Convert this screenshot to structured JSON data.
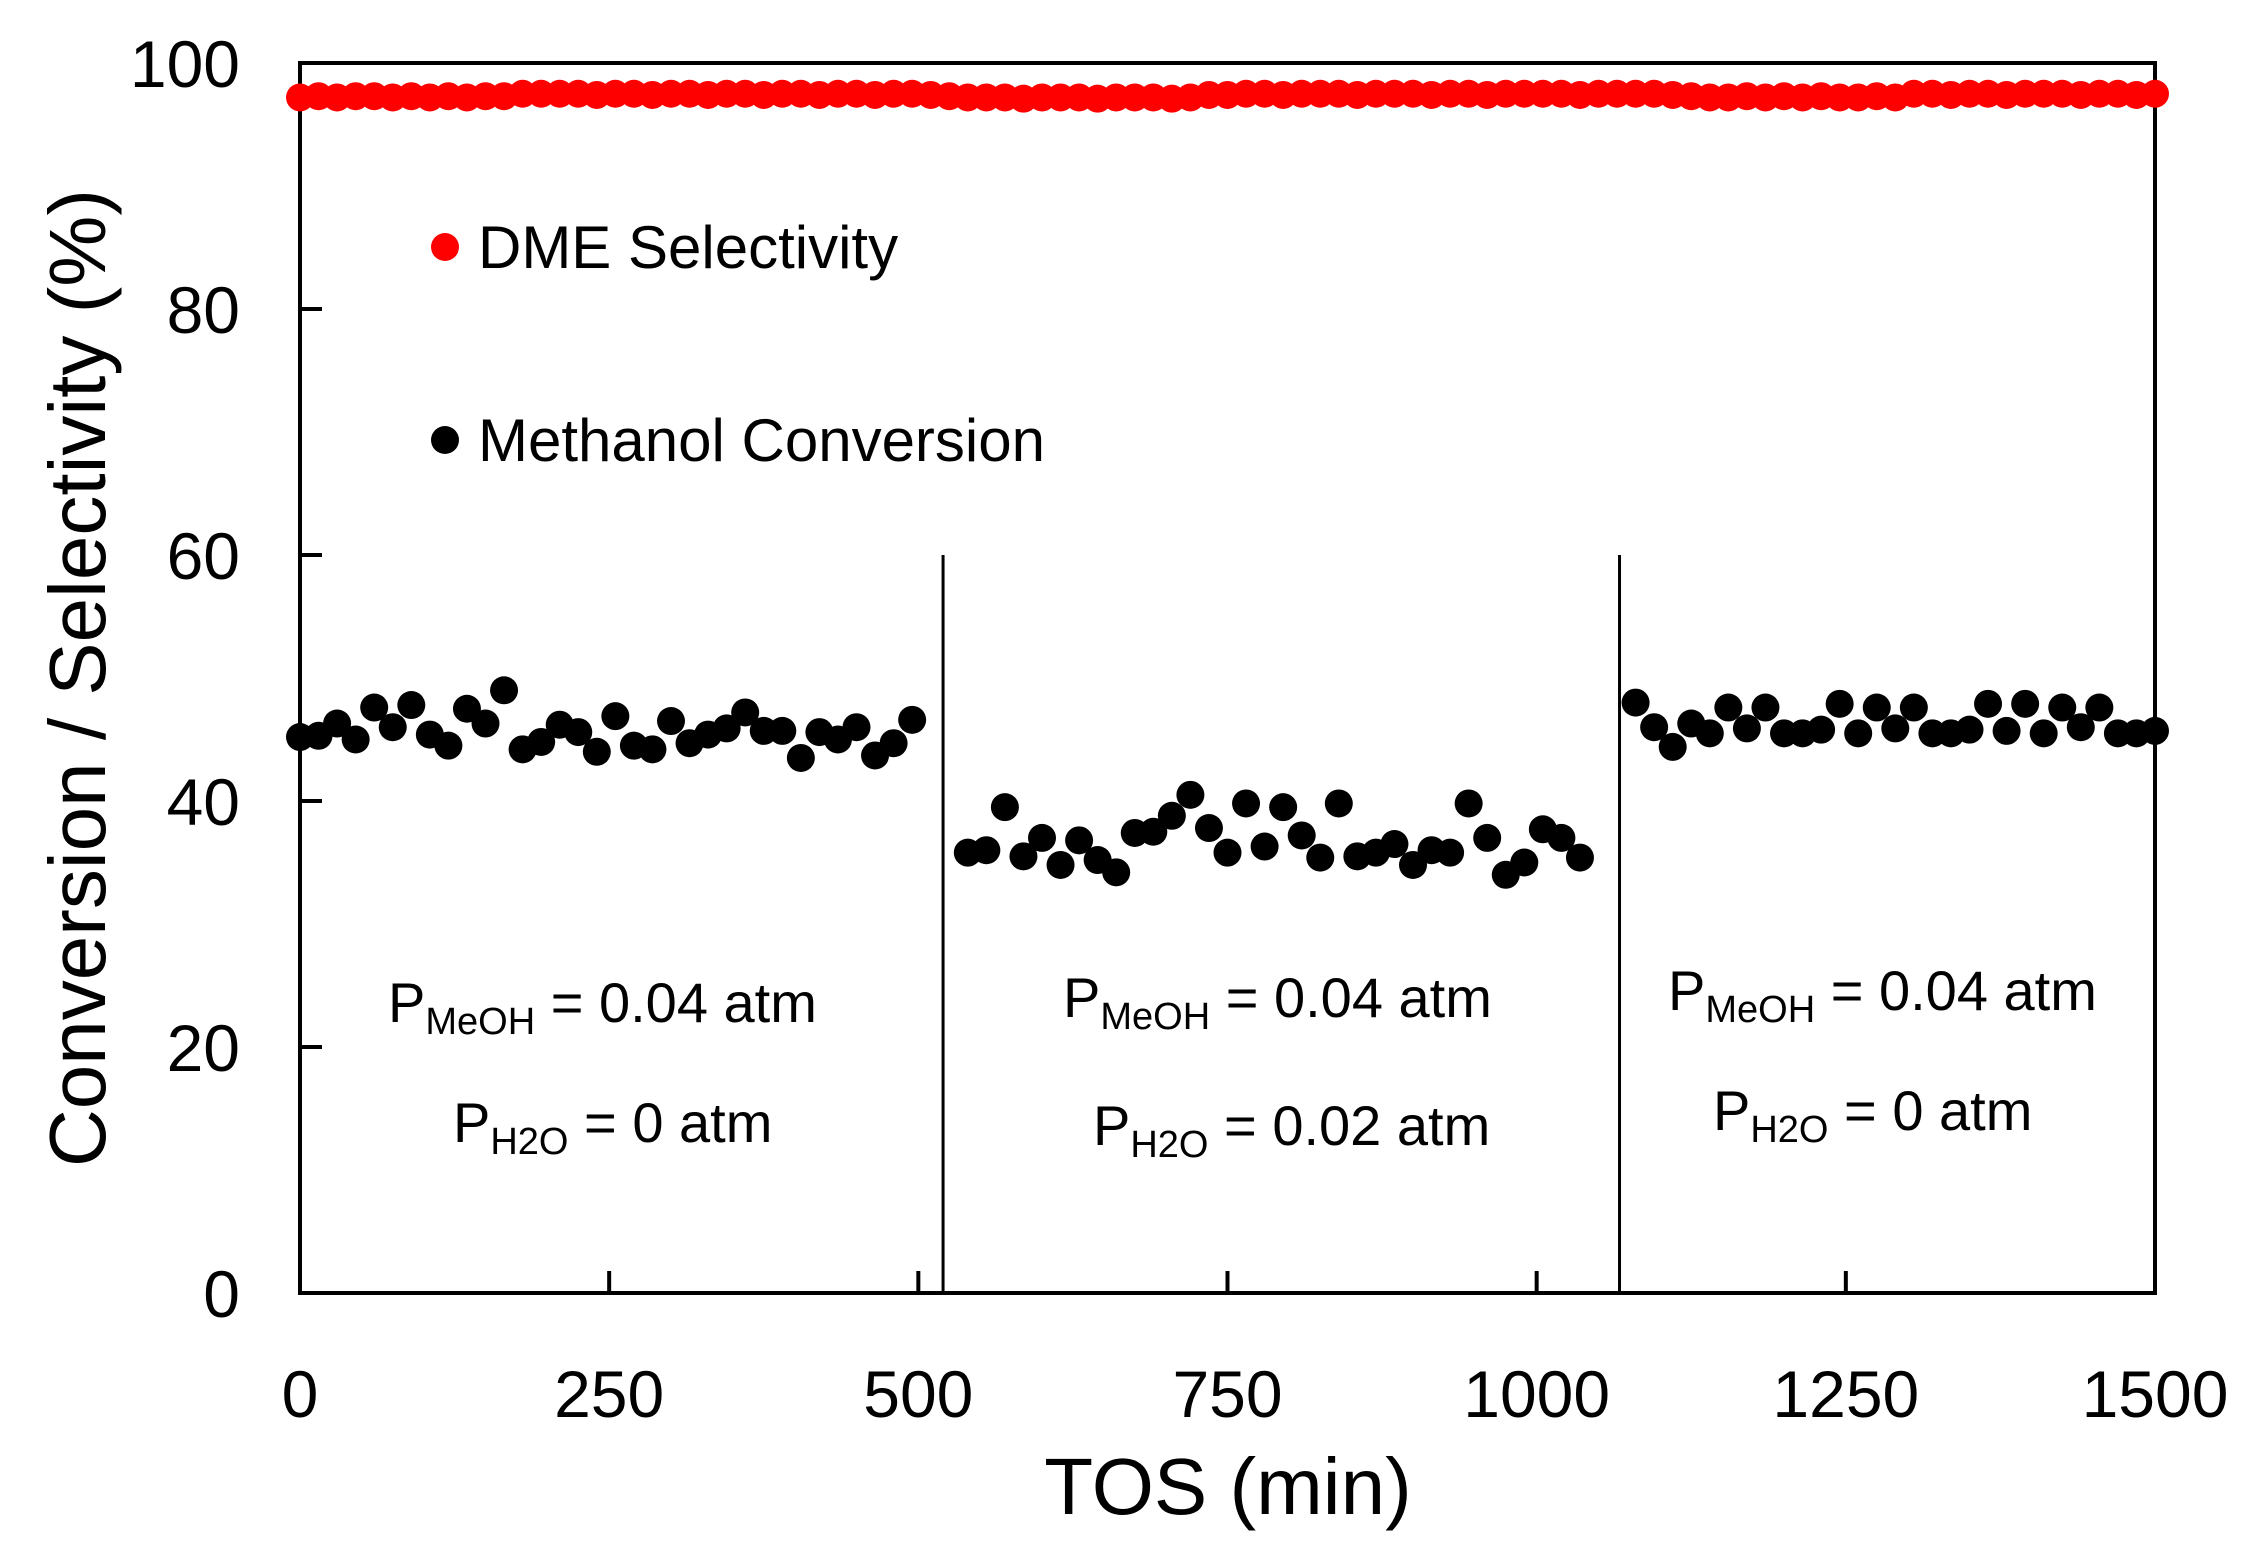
{
  "chart_data": {
    "type": "scatter",
    "title": "",
    "xlabel": "TOS (min)",
    "ylabel": "Conversion / Selectivity (%)",
    "xlim": [
      0,
      1500
    ],
    "ylim": [
      0,
      100
    ],
    "xticks": [
      0,
      250,
      500,
      750,
      1000,
      1250,
      1500
    ],
    "yticks": [
      0,
      20,
      40,
      60,
      80,
      100
    ],
    "xtick_labels": [
      "0",
      "250",
      "500",
      "750",
      "1000",
      "1250",
      "1500"
    ],
    "ytick_labels": [
      "0",
      "20",
      "40",
      "60",
      "80",
      "100"
    ],
    "grid": false,
    "legend_position": "top-left",
    "series": [
      {
        "name": "DME Selectivity",
        "color": "#ff0000",
        "x": [
          0,
          15,
          30,
          45,
          60,
          75,
          90,
          105,
          120,
          135,
          150,
          165,
          180,
          195,
          210,
          225,
          240,
          255,
          270,
          285,
          300,
          315,
          330,
          345,
          360,
          375,
          390,
          405,
          420,
          435,
          450,
          465,
          480,
          495,
          510,
          525,
          540,
          555,
          570,
          585,
          600,
          615,
          630,
          645,
          660,
          675,
          690,
          705,
          720,
          735,
          750,
          765,
          780,
          795,
          810,
          825,
          840,
          855,
          870,
          885,
          900,
          915,
          930,
          945,
          960,
          975,
          990,
          1005,
          1020,
          1035,
          1050,
          1065,
          1080,
          1095,
          1110,
          1125,
          1140,
          1155,
          1170,
          1185,
          1200,
          1215,
          1230,
          1245,
          1260,
          1275,
          1290,
          1305,
          1320,
          1335,
          1350,
          1365,
          1380,
          1395,
          1410,
          1425,
          1440,
          1455,
          1470,
          1485,
          1500
        ],
        "y": [
          97.2,
          97.3,
          97.2,
          97.3,
          97.3,
          97.2,
          97.3,
          97.2,
          97.3,
          97.2,
          97.3,
          97.3,
          97.5,
          97.5,
          97.5,
          97.5,
          97.4,
          97.5,
          97.5,
          97.4,
          97.5,
          97.5,
          97.4,
          97.5,
          97.5,
          97.4,
          97.5,
          97.5,
          97.4,
          97.5,
          97.5,
          97.4,
          97.5,
          97.5,
          97.4,
          97.3,
          97.2,
          97.2,
          97.2,
          97.1,
          97.2,
          97.2,
          97.2,
          97.1,
          97.2,
          97.2,
          97.2,
          97.1,
          97.2,
          97.4,
          97.4,
          97.5,
          97.5,
          97.4,
          97.5,
          97.5,
          97.5,
          97.4,
          97.5,
          97.5,
          97.5,
          97.4,
          97.5,
          97.5,
          97.4,
          97.5,
          97.5,
          97.5,
          97.5,
          97.4,
          97.5,
          97.5,
          97.5,
          97.5,
          97.4,
          97.3,
          97.2,
          97.2,
          97.3,
          97.2,
          97.3,
          97.2,
          97.3,
          97.2,
          97.2,
          97.3,
          97.2,
          97.5,
          97.5,
          97.4,
          97.5,
          97.5,
          97.4,
          97.5,
          97.5,
          97.5,
          97.4,
          97.5,
          97.5,
          97.4,
          97.5
        ]
      },
      {
        "name": "Methanol Conversion",
        "color": "#000000",
        "x": [
          0,
          15,
          30,
          45,
          60,
          75,
          90,
          105,
          120,
          135,
          150,
          165,
          180,
          195,
          210,
          225,
          240,
          255,
          270,
          285,
          300,
          315,
          330,
          345,
          360,
          375,
          390,
          405,
          420,
          435,
          450,
          465,
          480,
          495,
          540,
          555,
          570,
          585,
          600,
          615,
          630,
          645,
          660,
          675,
          690,
          705,
          720,
          735,
          750,
          765,
          780,
          795,
          810,
          825,
          840,
          855,
          870,
          885,
          900,
          915,
          930,
          945,
          960,
          975,
          990,
          1005,
          1020,
          1035,
          1080,
          1095,
          1110,
          1125,
          1140,
          1155,
          1170,
          1185,
          1200,
          1215,
          1230,
          1245,
          1260,
          1275,
          1290,
          1305,
          1320,
          1335,
          1350,
          1365,
          1380,
          1395,
          1410,
          1425,
          1440,
          1455,
          1470,
          1485,
          1500
        ],
        "y": [
          45.2,
          45.3,
          46.3,
          45.0,
          47.6,
          46.0,
          47.8,
          45.4,
          44.5,
          47.5,
          46.3,
          49.0,
          44.2,
          44.8,
          46.2,
          45.6,
          44.0,
          46.9,
          44.5,
          44.2,
          46.5,
          44.7,
          45.4,
          45.9,
          47.2,
          45.7,
          45.7,
          43.5,
          45.6,
          45.0,
          46.0,
          43.7,
          44.7,
          46.6,
          35.8,
          36.0,
          39.5,
          35.5,
          37.0,
          34.8,
          36.8,
          35.2,
          34.2,
          37.4,
          37.5,
          38.8,
          40.5,
          37.8,
          35.8,
          39.8,
          36.3,
          39.5,
          37.2,
          35.4,
          39.8,
          35.5,
          35.8,
          36.5,
          34.8,
          36.0,
          35.8,
          39.8,
          37.0,
          34.0,
          35.0,
          37.7,
          37.0,
          35.4,
          48.0,
          46.0,
          44.4,
          46.3,
          45.5,
          47.6,
          45.9,
          47.6,
          45.5,
          45.5,
          45.8,
          47.9,
          45.5,
          47.6,
          45.9,
          47.6,
          45.5,
          45.5,
          45.8,
          47.9,
          45.7,
          47.9,
          45.5,
          47.6,
          46.0,
          47.6,
          45.5,
          45.5,
          45.7
        ]
      }
    ],
    "dividers_x": [
      520,
      1067
    ],
    "annotations": [
      {
        "p1_main": "P",
        "p1_sub": "MeOH",
        "p1_tail": " = 0.04 atm",
        "p2_main": "P",
        "p2_sub": "H2O",
        "p2_tail": " = 0 atm"
      },
      {
        "p1_main": "P",
        "p1_sub": "MeOH",
        "p1_tail": " = 0.04 atm",
        "p2_main": "P",
        "p2_sub": "H2O",
        "p2_tail": " = 0.02 atm"
      },
      {
        "p1_main": "P",
        "p1_sub": "MeOH",
        "p1_tail": " = 0.04 atm",
        "p2_main": "P",
        "p2_sub": "H2O",
        "p2_tail": " = 0 atm"
      }
    ]
  }
}
